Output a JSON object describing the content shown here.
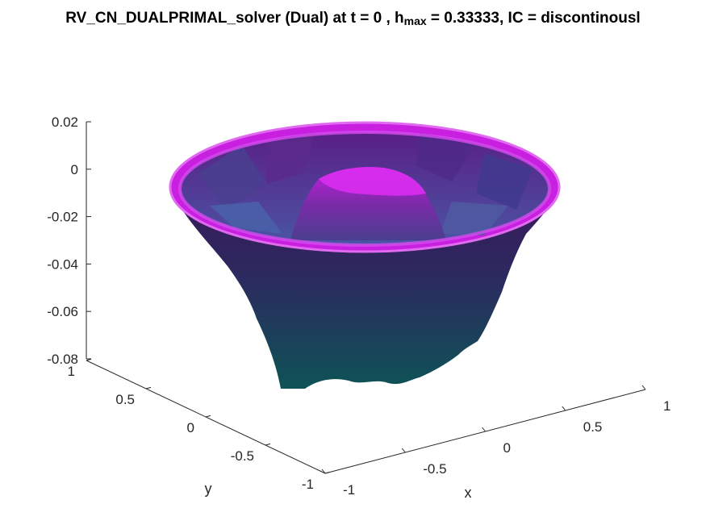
{
  "chart_data": {
    "type": "surface3d",
    "title_main": "RV_CN_DUALPRIMAL_solver (Dual) at t = 0 , h",
    "title_sub": "max",
    "title_tail": " = 0.33333, IC = discontinousl",
    "xlabel": "x",
    "ylabel": "y",
    "zlabel": "",
    "xlim": [
      -1,
      1
    ],
    "ylim": [
      -1,
      1
    ],
    "zlim": [
      -0.08,
      0.02
    ],
    "x_ticks": [
      -1,
      -0.5,
      0,
      0.5,
      1
    ],
    "y_ticks": [
      -1,
      -0.5,
      0,
      0.5,
      1
    ],
    "z_ticks": [
      -0.08,
      -0.06,
      -0.04,
      -0.02,
      0,
      0.02
    ],
    "x_tick_labels": [
      "-1",
      "-0.5",
      "0",
      "0.5",
      "1"
    ],
    "y_tick_labels": [
      "-1",
      "-0.5",
      "0",
      "0.5",
      "1"
    ],
    "z_tick_labels": [
      "-0.08",
      "-0.06",
      "-0.04",
      "-0.02",
      "0",
      "0.02"
    ],
    "surface": {
      "shape": "bowl",
      "rim_z": 0.0,
      "bottom_z": -0.08,
      "center_peak_z": -0.005,
      "colormap_low": "#0e4f57",
      "colormap_mid": "#3f1d63",
      "colormap_high": "#d41fe6"
    }
  }
}
